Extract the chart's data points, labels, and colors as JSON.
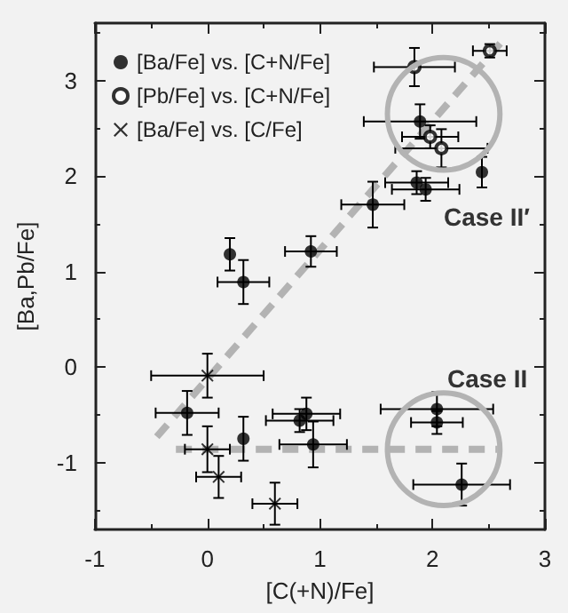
{
  "chart_data": {
    "type": "scatter",
    "xlabel": "[C(+N)/Fe]",
    "ylabel": "[Ba,Pb/Fe]",
    "xlim": [
      -1,
      3
    ],
    "ylim": [
      -1.7,
      3.6
    ],
    "xticks": [
      -1,
      0,
      1,
      2,
      3
    ],
    "yticks": [
      -1,
      0,
      1,
      2,
      3
    ],
    "grid": false,
    "legend": "top left",
    "annotations": [
      "Case II′",
      "Case II"
    ],
    "series": [
      {
        "name": "[Ba/Fe] vs. [C+N/Fe]",
        "color": "#000000",
        "marker": "circle",
        "x": [
          1.89,
          2.44,
          1.86,
          1.94,
          1.47,
          0.2,
          0.92,
          0.32,
          -0.18,
          0.32,
          0.88,
          0.82,
          0.94,
          2.04,
          2.04,
          2.26
        ],
        "values": [
          2.57,
          2.04,
          1.93,
          1.86,
          1.7,
          1.18,
          1.21,
          0.89,
          -0.48,
          -0.75,
          -0.49,
          -0.56,
          -0.81,
          -0.44,
          -0.58,
          -1.23
        ],
        "errors": [
          0.18,
          0.16,
          0.12,
          0.12,
          0.24,
          0.17,
          0.16,
          0.23,
          0.23,
          0.23,
          0.17,
          0.12,
          0.24,
          0.18,
          0.12,
          0.22
        ],
        "xerrors": [
          0.5,
          null,
          0.28,
          0.3,
          0.28,
          null,
          0.23,
          0.23,
          0.28,
          null,
          0.3,
          0.3,
          0.3,
          0.5,
          0.23,
          0.43
        ]
      },
      {
        "name": "[Pb/Fe] vs. [C+N/Fe]",
        "color": "#000000",
        "marker": "open circle",
        "x": [
          1.84,
          2.51,
          1.98,
          2.08
        ],
        "values": [
          3.14,
          3.31,
          2.41,
          2.29
        ],
        "errors": [
          0.2,
          0.07,
          0.12,
          0.2
        ],
        "xerrors": [
          0.36,
          0.15,
          0.25,
          0.41
        ]
      },
      {
        "name": "[Ba/Fe] vs. [C/Fe]",
        "color": "#000000",
        "marker": "cross",
        "x": [
          0,
          0,
          0.1,
          0.6
        ],
        "values": [
          -0.09,
          -0.86,
          -1.15,
          -1.43
        ],
        "errors": [
          0.23,
          0.24,
          0.22,
          0.22
        ],
        "xerrors": [
          0.5,
          0.2,
          0.2,
          0.2
        ]
      },
      {
        "type": "line",
        "color": "#b3b3b3",
        "line_style": "dashed",
        "marker": "none",
        "x": [
          -0.45,
          2.65
        ],
        "values": [
          -0.73,
          3.45
        ]
      },
      {
        "type": "line",
        "color": "#b3b3b3",
        "line_style": "dashed",
        "marker": "none",
        "x": [
          -0.28,
          2.58
        ],
        "values": [
          -0.86,
          -0.86
        ]
      }
    ]
  }
}
